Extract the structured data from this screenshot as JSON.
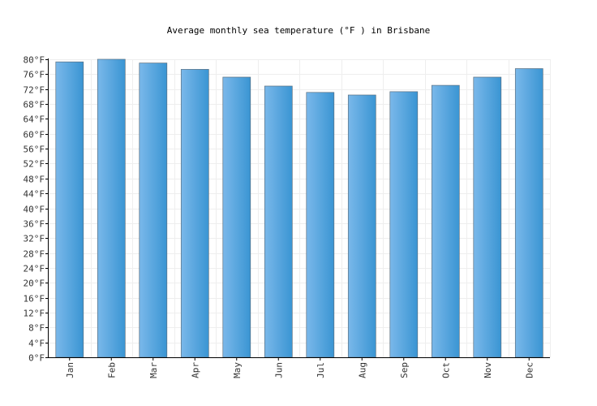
{
  "chart_data": {
    "type": "bar",
    "title": "Average monthly sea temperature (°F ) in Brisbane",
    "categories": [
      "Jan",
      "Feb",
      "Mar",
      "Apr",
      "May",
      "Jun",
      "Jul",
      "Aug",
      "Sep",
      "Oct",
      "Nov",
      "Dec"
    ],
    "values": [
      79.3,
      80.0,
      79.0,
      77.3,
      75.2,
      72.8,
      71.1,
      70.4,
      71.3,
      73.0,
      75.2,
      77.5
    ],
    "ylim": [
      0,
      80
    ],
    "ytick_step": 4,
    "ytick_suffix": "°F",
    "grid": true,
    "colors": {
      "bar_light": "#7ab8ea",
      "bar_dark": "#3a95d3",
      "bar_border": "#5a6f80",
      "grid": "#eeeeee"
    }
  }
}
